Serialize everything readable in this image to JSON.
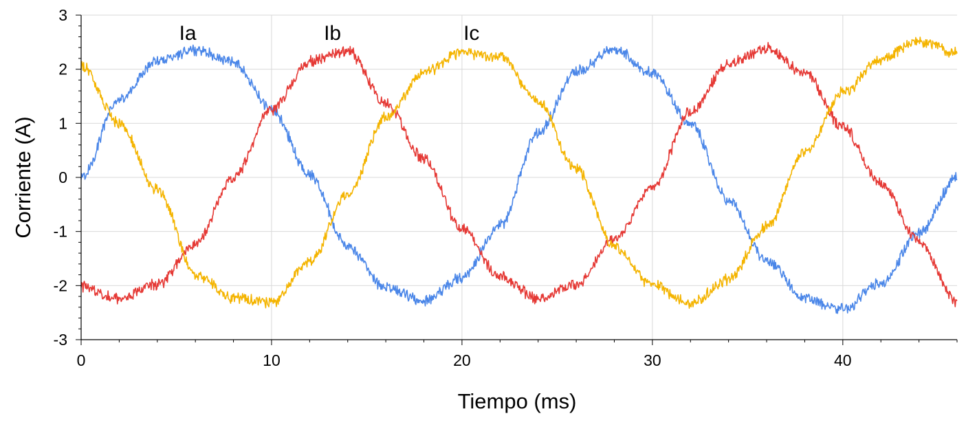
{
  "chart_data": {
    "type": "line",
    "xlabel": "Tiempo (ms)",
    "ylabel": "Corriente (A)",
    "xlim": [
      0,
      46
    ],
    "ylim": [
      -3,
      3
    ],
    "xticks": [
      0,
      10,
      20,
      30,
      40
    ],
    "xtick_labels": [
      "0",
      "10",
      "20",
      "30",
      "40"
    ],
    "yticks": [
      -3,
      -2,
      -1,
      0,
      1,
      2,
      3
    ],
    "ytick_labels": [
      "-3",
      "-2",
      "-1",
      "0",
      "1",
      "2",
      "3"
    ],
    "grid": true,
    "legend": "inline labels above peaks",
    "series": [
      {
        "name": "Ia",
        "color": "#4a86e8",
        "x": [
          0,
          2,
          4,
          6,
          8,
          10,
          12,
          14,
          16,
          18,
          20,
          22,
          24,
          26,
          28,
          30,
          32,
          34,
          36,
          38,
          40,
          42,
          44,
          46
        ],
        "y": [
          0.0,
          1.44,
          2.16,
          2.36,
          2.14,
          1.26,
          0.05,
          -1.28,
          -2.04,
          -2.27,
          -1.86,
          -0.88,
          0.82,
          1.96,
          2.37,
          1.92,
          1.0,
          -0.42,
          -1.54,
          -2.23,
          -2.43,
          -1.96,
          -1.03,
          0.0
        ]
      },
      {
        "name": "Ib",
        "color": "#e53935",
        "x": [
          0,
          2,
          4,
          6,
          8,
          10,
          12,
          14,
          16,
          18,
          20,
          22,
          24,
          26,
          28,
          30,
          32,
          34,
          36,
          38,
          40,
          42,
          44,
          46
        ],
        "y": [
          -2.02,
          -2.24,
          -1.98,
          -1.24,
          0.0,
          1.26,
          2.14,
          2.34,
          1.38,
          0.35,
          -0.96,
          -1.83,
          -2.24,
          -1.98,
          -1.14,
          -0.18,
          1.2,
          2.1,
          2.38,
          1.94,
          0.93,
          -0.12,
          -1.19,
          -2.3
        ]
      },
      {
        "name": "Ic",
        "color": "#f4b400",
        "x": [
          0,
          2,
          4,
          6,
          8,
          10,
          12,
          14,
          16,
          18,
          20,
          22,
          24,
          26,
          28,
          30,
          32,
          34,
          36,
          38,
          40,
          42,
          44,
          46
        ],
        "y": [
          2.06,
          0.98,
          -0.22,
          -1.78,
          -2.24,
          -2.31,
          -1.56,
          -0.32,
          1.1,
          1.94,
          2.31,
          2.24,
          1.4,
          0.16,
          -1.28,
          -1.99,
          -2.33,
          -1.89,
          -0.91,
          0.46,
          1.57,
          2.18,
          2.52,
          2.3
        ]
      }
    ],
    "series_labels": [
      {
        "text": "Ia",
        "x": 5.6
      },
      {
        "text": "Ib",
        "x": 13.2
      },
      {
        "text": "Ic",
        "x": 20.5
      }
    ]
  }
}
